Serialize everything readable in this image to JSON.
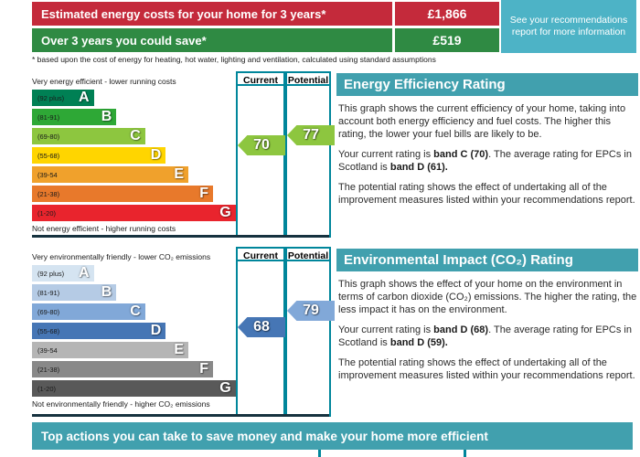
{
  "colors": {
    "red": "#c42a3b",
    "green": "#2f8a43",
    "note_teal": "#4db3c6",
    "header_teal": "#41a0ae",
    "border_teal": "#00869b",
    "dark_line": "#16323f"
  },
  "summary": {
    "rows": [
      {
        "label": "Estimated energy costs for your home for 3 years*",
        "value": "£1,866"
      },
      {
        "label": "Over 3 years you could save*",
        "value": "£519"
      }
    ],
    "note": "See your recommendations report for more information"
  },
  "disclaimer": "* based upon the cost of energy for heating, hot water, lighting and ventilation, calculated using standard assumptions",
  "charts": {
    "columns": {
      "current": "Current",
      "potential": "Potential"
    },
    "energy": {
      "top_label": "Very energy efficient - lower running costs",
      "bottom_label": "Not energy efficient - higher running costs",
      "bands": [
        {
          "range": "(92 plus)",
          "letter": "A",
          "color": "#008054",
          "width": "30%"
        },
        {
          "range": "(81-91)",
          "letter": "B",
          "color": "#2ea836",
          "width": "41%"
        },
        {
          "range": "(69-80)",
          "letter": "C",
          "color": "#8dc63f",
          "width": "55%"
        },
        {
          "range": "(55-68)",
          "letter": "D",
          "color": "#ffd500",
          "width": "65%"
        },
        {
          "range": "(39-54",
          "letter": "E",
          "color": "#f0a12c",
          "width": "76%"
        },
        {
          "range": "(21-38)",
          "letter": "F",
          "color": "#e8792b",
          "width": "88%"
        },
        {
          "range": "(1-20)",
          "letter": "G",
          "color": "#e9242d",
          "width": "99%"
        }
      ],
      "current": {
        "value": "70",
        "color": "#8dc63f"
      },
      "potential": {
        "value": "77",
        "color": "#8dc63f"
      }
    },
    "environment": {
      "top_label": "Very environmentally friendly - lower CO₂ emissions",
      "bottom_label": "Not environmentally friendly - higher CO₂ emissions",
      "bands": [
        {
          "range": "(92 plus)",
          "letter": "A",
          "color": "#d5e4f1",
          "width": "30%"
        },
        {
          "range": "(81-91)",
          "letter": "B",
          "color": "#b5cbe5",
          "width": "41%"
        },
        {
          "range": "(69-80)",
          "letter": "C",
          "color": "#81a8d8",
          "width": "55%"
        },
        {
          "range": "(55-68)",
          "letter": "D",
          "color": "#4676b5",
          "width": "65%"
        },
        {
          "range": "(39-54",
          "letter": "E",
          "color": "#b5b5b5",
          "width": "76%"
        },
        {
          "range": "(21-38)",
          "letter": "F",
          "color": "#898989",
          "width": "88%"
        },
        {
          "range": "(1-20)",
          "letter": "G",
          "color": "#595959",
          "width": "99%"
        }
      ],
      "current": {
        "value": "68",
        "color": "#4676b5"
      },
      "potential": {
        "value": "79",
        "color": "#81a8d8"
      }
    }
  },
  "energy_panel": {
    "title": "Energy Efficiency Rating",
    "p1": "This graph shows the current efficiency of your home, taking into account both energy efficiency and fuel costs. The higher this rating, the lower your fuel bills are likely to be.",
    "p2_pre": "Your current rating is ",
    "p2_current": "band C (70)",
    "p2_mid": ". The average rating for EPCs in Scotland is ",
    "p2_avg": "band D (61).",
    "p3": "The potential rating shows the effect of undertaking all of the improvement measures listed within your recommendations report."
  },
  "environment_panel": {
    "title": "Environmental Impact (CO₂) Rating",
    "p1": "This graph shows the effect of your home on the environment in terms of carbon dioxide (CO₂) emissions. The higher the rating, the less impact it has on the environment.",
    "p2_pre": "Your current rating is ",
    "p2_current": "band D (68)",
    "p2_mid": ". The average rating for EPCs in Scotland is ",
    "p2_avg": "band D (59).",
    "p3": "The potential rating shows the effect of undertaking all of the improvement measures listed within your recommendations report."
  },
  "footer": {
    "title": "Top actions you can take to save money and make your home more efficient"
  }
}
